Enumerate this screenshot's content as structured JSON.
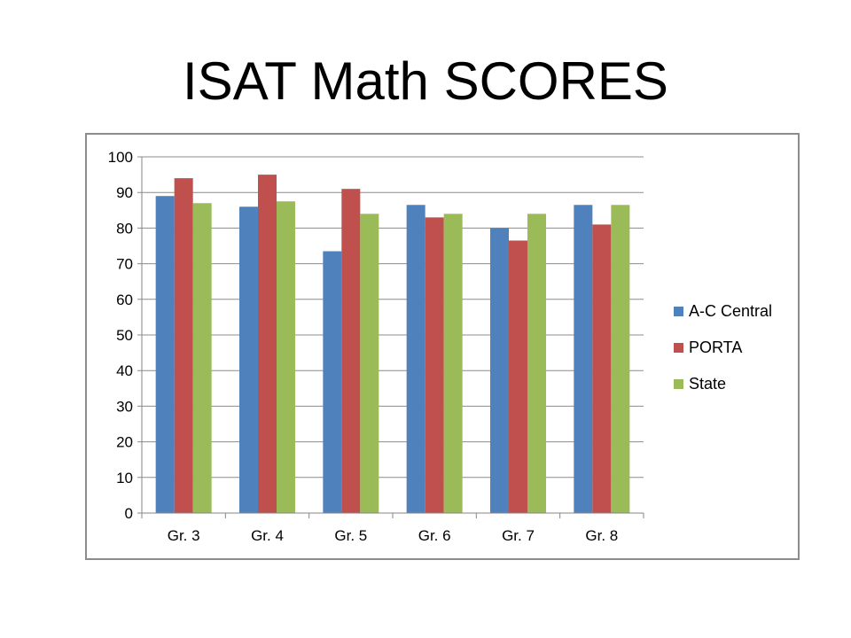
{
  "title": "ISAT Math SCORES",
  "chart_data": {
    "type": "bar",
    "categories": [
      "Gr. 3",
      "Gr. 4",
      "Gr. 5",
      "Gr. 6",
      "Gr. 7",
      "Gr. 8"
    ],
    "series": [
      {
        "name": "A-C Central",
        "color": "#4F81BD",
        "values": [
          89,
          86,
          73.5,
          86.5,
          80,
          86.5
        ]
      },
      {
        "name": "PORTA",
        "color": "#C0504D",
        "values": [
          94,
          95,
          91,
          83,
          76.5,
          81
        ]
      },
      {
        "name": "State",
        "color": "#9BBB59",
        "values": [
          87,
          87.5,
          84,
          84,
          84,
          86.5
        ]
      }
    ],
    "ylim": [
      0,
      100
    ],
    "yticks": [
      "0",
      "10",
      "20",
      "30",
      "40",
      "50",
      "60",
      "70",
      "80",
      "90",
      "100"
    ],
    "grid": true,
    "legend_position": "right",
    "xlabel": "",
    "ylabel": ""
  }
}
